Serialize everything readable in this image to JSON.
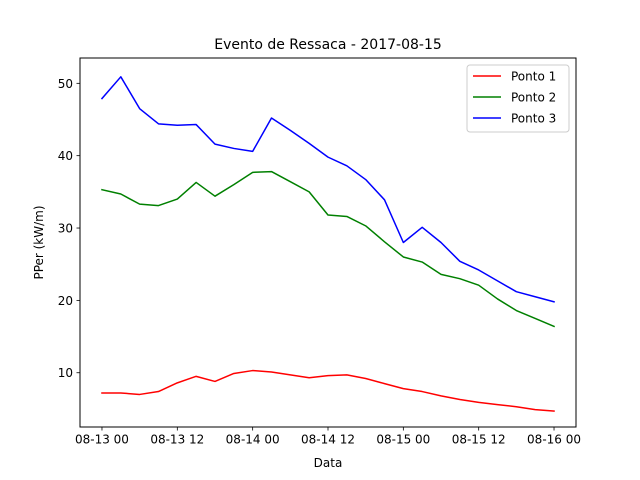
{
  "chart_data": {
    "type": "line",
    "title": "Evento de Ressaca - 2017-08-15",
    "xlabel": "Data",
    "ylabel": "PPer (kW/m)",
    "x": [
      0,
      3,
      6,
      9,
      12,
      15,
      18,
      21,
      24,
      27,
      30,
      33,
      36,
      39,
      42,
      45,
      48,
      51,
      54,
      57,
      60,
      63,
      66,
      69,
      72
    ],
    "xlim": [
      -3.5,
      75.5
    ],
    "ylim": [
      2.5,
      53.5
    ],
    "x_ticks": [
      {
        "value": 0,
        "label": "08-13 00"
      },
      {
        "value": 12,
        "label": "08-13 12"
      },
      {
        "value": 24,
        "label": "08-14 00"
      },
      {
        "value": 36,
        "label": "08-14 12"
      },
      {
        "value": 48,
        "label": "08-15 00"
      },
      {
        "value": 60,
        "label": "08-15 12"
      },
      {
        "value": 72,
        "label": "08-16 00"
      }
    ],
    "y_ticks": [
      {
        "value": 10,
        "label": "10"
      },
      {
        "value": 20,
        "label": "20"
      },
      {
        "value": 30,
        "label": "30"
      },
      {
        "value": 40,
        "label": "40"
      },
      {
        "value": 50,
        "label": "50"
      }
    ],
    "grid": false,
    "legend_position": "top-right",
    "series": [
      {
        "name": "Ponto 1",
        "color": "#ff0000",
        "values": [
          7.2,
          7.2,
          7.0,
          7.4,
          8.6,
          9.5,
          8.8,
          9.9,
          10.3,
          10.1,
          9.7,
          9.3,
          9.6,
          9.7,
          9.2,
          8.5,
          7.8,
          7.4,
          6.8,
          6.3,
          5.9,
          5.6,
          5.3,
          4.9,
          4.7
        ]
      },
      {
        "name": "Ponto 2",
        "color": "#008000",
        "values": [
          35.3,
          34.7,
          33.3,
          33.1,
          34.0,
          36.3,
          34.4,
          36.0,
          37.7,
          37.8,
          36.4,
          35.0,
          31.8,
          31.6,
          30.3,
          28.1,
          26.0,
          25.3,
          23.6,
          23.0,
          22.1,
          20.2,
          18.6,
          17.5,
          16.4
        ]
      },
      {
        "name": "Ponto 3",
        "color": "#0000ff",
        "values": [
          47.9,
          50.9,
          46.5,
          44.4,
          44.2,
          44.3,
          41.6,
          41.0,
          40.6,
          45.2,
          43.5,
          41.7,
          39.8,
          38.6,
          36.7,
          33.9,
          28.0,
          30.1,
          28.0,
          25.4,
          24.2,
          22.7,
          21.2,
          20.5,
          19.8
        ]
      }
    ]
  }
}
